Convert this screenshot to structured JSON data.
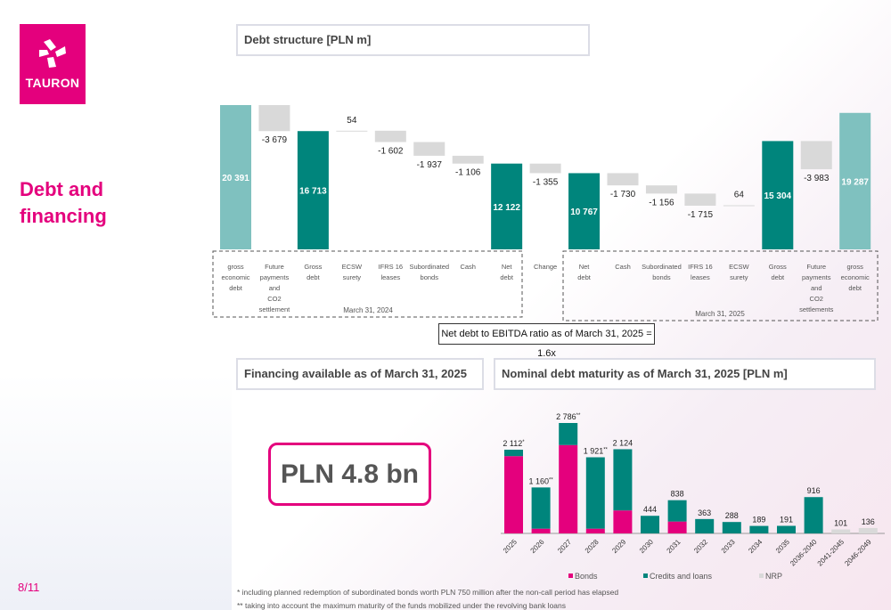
{
  "logo": {
    "text": "TAURON"
  },
  "sidebar": {
    "title_line1": "Debt and",
    "title_line2": "financing"
  },
  "page_number": "8/11",
  "sections": {
    "debt_structure": "Debt structure [PLN m]",
    "financing": "Financing available as of March 31, 2025",
    "maturity": "Nominal debt maturity as of March 31, 2025 [PLN m]"
  },
  "ratio_note": "Net debt to EBITDA ratio as of March 31, 2025 = 1.6x",
  "financing_value": "PLN 4.8 bn",
  "footnotes": [
    "* including planned redemption of subordinated bonds worth PLN 750 million after the non-call period has elapsed",
    "** taking into account the maximum maturity of the funds mobilized under the revolving bank loans"
  ],
  "colors": {
    "brand": "#e4007d",
    "teal": "#00857c",
    "light_teal": "#7fc1bf",
    "grey": "#d9d9d9"
  },
  "chart_data": [
    {
      "type": "bar",
      "subtype": "waterfall",
      "title": "Debt structure [PLN m]",
      "categories": [
        "gross\neconomic\ndebt",
        "Future\npayments\nand\nCO2\nsettlement",
        "Gross\ndebt",
        "ECSW\nsurety",
        "IFRS 16\nleases",
        "Subordinated\nbonds",
        "Cash",
        "Net\ndebt",
        "Change",
        "Net\ndebt",
        "Cash",
        "Subordinated\nbonds",
        "IFRS 16\nleases",
        "ECSW\nsurety",
        "Gross\ndebt",
        "Future\npayments\nand\nCO2\nsettlements",
        "gross\neconomic\ndebt"
      ],
      "value_labels": [
        "20 391",
        "-3 679",
        "16 713",
        "54",
        "-1 602",
        "-1 937",
        "-1 106",
        "12 122",
        "-1 355",
        "10 767",
        "-1 730",
        "-1 156",
        "-1 715",
        "64",
        "15 304",
        "-3 983",
        "19 287"
      ],
      "values": [
        20391,
        -3679,
        16713,
        54,
        -1602,
        -1937,
        -1106,
        12122,
        -1355,
        10767,
        -1730,
        -1156,
        -1715,
        64,
        15304,
        -3983,
        19287
      ],
      "bar_kind": [
        "total-light",
        "delta",
        "total",
        "delta",
        "delta",
        "delta",
        "delta",
        "total",
        "delta",
        "total",
        "delta",
        "delta",
        "delta",
        "delta",
        "total",
        "delta",
        "total-light"
      ],
      "groups": [
        {
          "label": "March 31, 2024"
        },
        {
          "label": "March 31, 2025"
        }
      ]
    },
    {
      "type": "bar",
      "subtype": "stacked",
      "title": "Nominal debt maturity as of March 31, 2025 [PLN m]",
      "categories": [
        "2025",
        "2026",
        "2027",
        "2028",
        "2029",
        "2030",
        "2031",
        "2032",
        "2033",
        "2034",
        "2035",
        "2036-2040",
        "2041-2045",
        "2046-2049"
      ],
      "totals": [
        2112,
        1160,
        2786,
        1921,
        2124,
        444,
        838,
        363,
        288,
        189,
        191,
        916,
        101,
        136
      ],
      "total_labels": [
        "2 112",
        "1 160",
        "2 786",
        "1 921",
        "2 124",
        "444",
        "838",
        "363",
        "288",
        "189",
        "191",
        "916",
        "101",
        "136"
      ],
      "label_marks": [
        "*",
        "**",
        "**",
        "**",
        "",
        "",
        "",
        "",
        "",
        "",
        "",
        "",
        "",
        ""
      ],
      "series": [
        {
          "name": "Bonds",
          "color": "#e4007d",
          "values": [
            1950,
            120,
            2230,
            120,
            580,
            0,
            300,
            0,
            0,
            0,
            0,
            0,
            0,
            0
          ]
        },
        {
          "name": "Credits and loans",
          "color": "#00857c",
          "values": [
            162,
            1040,
            556,
            1801,
            1544,
            444,
            538,
            363,
            288,
            189,
            191,
            916,
            0,
            0
          ]
        },
        {
          "name": "NRP",
          "color": "#d9d9d9",
          "values": [
            0,
            0,
            0,
            0,
            0,
            0,
            0,
            0,
            0,
            0,
            0,
            0,
            101,
            136
          ]
        }
      ]
    }
  ]
}
